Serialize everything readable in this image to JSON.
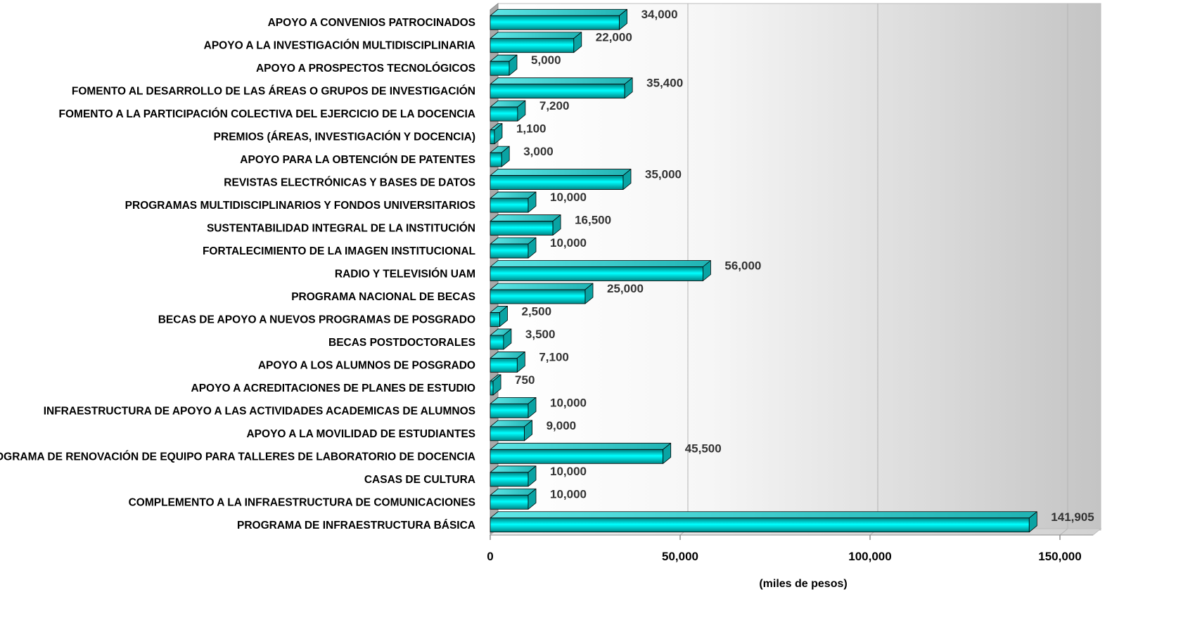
{
  "chart_data": {
    "type": "bar",
    "orientation": "horizontal",
    "style": "3d",
    "categories": [
      "APOYO A CONVENIOS PATROCINADOS",
      "APOYO A LA INVESTIGACIÓN MULTIDISCIPLINARIA",
      "APOYO A PROSPECTOS TECNOLÓGICOS",
      "FOMENTO AL DESARROLLO DE LAS ÁREAS O GRUPOS DE INVESTIGACIÓN",
      "FOMENTO A LA PARTICIPACIÓN COLECTIVA DEL EJERCICIO DE LA DOCENCIA",
      "PREMIOS (ÁREAS, INVESTIGACIÓN Y DOCENCIA)",
      "APOYO PARA LA OBTENCIÓN DE PATENTES",
      "REVISTAS ELECTRÓNICAS Y BASES DE DATOS",
      "PROGRAMAS MULTIDISCIPLINARIOS Y FONDOS UNIVERSITARIOS",
      "SUSTENTABILIDAD INTEGRAL DE LA INSTITUCIÓN",
      "FORTALECIMIENTO DE LA IMAGEN INSTITUCIONAL",
      "RADIO Y TELEVISIÓN UAM",
      "PROGRAMA NACIONAL DE BECAS",
      "BECAS DE APOYO A NUEVOS PROGRAMAS DE POSGRADO",
      "BECAS POSTDOCTORALES",
      "APOYO A LOS ALUMNOS DE POSGRADO",
      "APOYO A ACREDITACIONES DE PLANES DE ESTUDIO",
      "INFRAESTRUCTURA DE APOYO A LAS ACTIVIDADES ACADEMICAS DE ALUMNOS",
      "APOYO A LA MOVILIDAD DE ESTUDIANTES",
      "PROGRAMA DE RENOVACIÓN DE EQUIPO PARA TALLERES DE LABORATORIO DE DOCENCIA",
      "CASAS DE CULTURA",
      "COMPLEMENTO A LA INFRAESTRUCTURA DE COMUNICACIONES",
      "PROGRAMA DE INFRAESTRUCTURA BÁSICA"
    ],
    "values": [
      34000,
      22000,
      5000,
      35400,
      7200,
      1100,
      3000,
      35000,
      10000,
      16500,
      10000,
      56000,
      25000,
      2500,
      3500,
      7100,
      750,
      10000,
      9000,
      45500,
      10000,
      10000,
      141905
    ],
    "value_labels": [
      "34,000",
      "22,000",
      "5,000",
      "35,400",
      "7,200",
      "1,100",
      "3,000",
      "35,000",
      "10,000",
      "16,500",
      "10,000",
      "56,000",
      "25,000",
      "2,500",
      "3,500",
      "7,100",
      "750",
      "10,000",
      "9,000",
      "45,500",
      "10,000",
      "10,000",
      "141,905"
    ],
    "xlabel": "(miles de pesos)",
    "ylabel": "",
    "xlim": [
      0,
      150000
    ],
    "xticks": [
      0,
      50000,
      100000,
      150000
    ],
    "xtick_labels": [
      "0",
      "50,000",
      "100,000",
      "150,000"
    ],
    "grid": true,
    "legend": "none",
    "colors": {
      "bar_light": "#00ffff",
      "bar_dark": "#007a7a",
      "bar_edge": "#000000",
      "wall_left": "#ffffff",
      "wall_right": "#c8c8c8",
      "gridline": "#b4b4b4"
    }
  }
}
